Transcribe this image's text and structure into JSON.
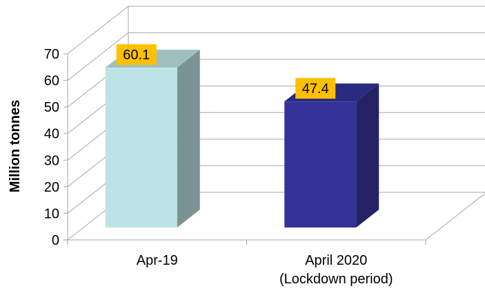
{
  "chart_data": {
    "type": "bar",
    "categories": [
      [
        "Apr-19"
      ],
      [
        "April 2020",
        "(Lockdown period)"
      ]
    ],
    "values": [
      60.1,
      47.4
    ],
    "data_labels": [
      "60.1",
      "47.4"
    ],
    "title": "",
    "xlabel": "",
    "ylabel": "Million tonnes",
    "ylim": [
      0,
      70
    ],
    "yticks": [
      0,
      10,
      20,
      30,
      40,
      50,
      60,
      70
    ],
    "grid": true,
    "legend": "none",
    "style": "3d-column",
    "colors": {
      "bars": [
        {
          "front": "#BEE3E4",
          "side": "#7A9394",
          "top": "#9FBFC0"
        },
        {
          "front": "#333399",
          "side": "#232366",
          "top": "#2A2A80"
        }
      ],
      "label_bg": "#FFC000",
      "grid": "#A6A6A6"
    }
  }
}
